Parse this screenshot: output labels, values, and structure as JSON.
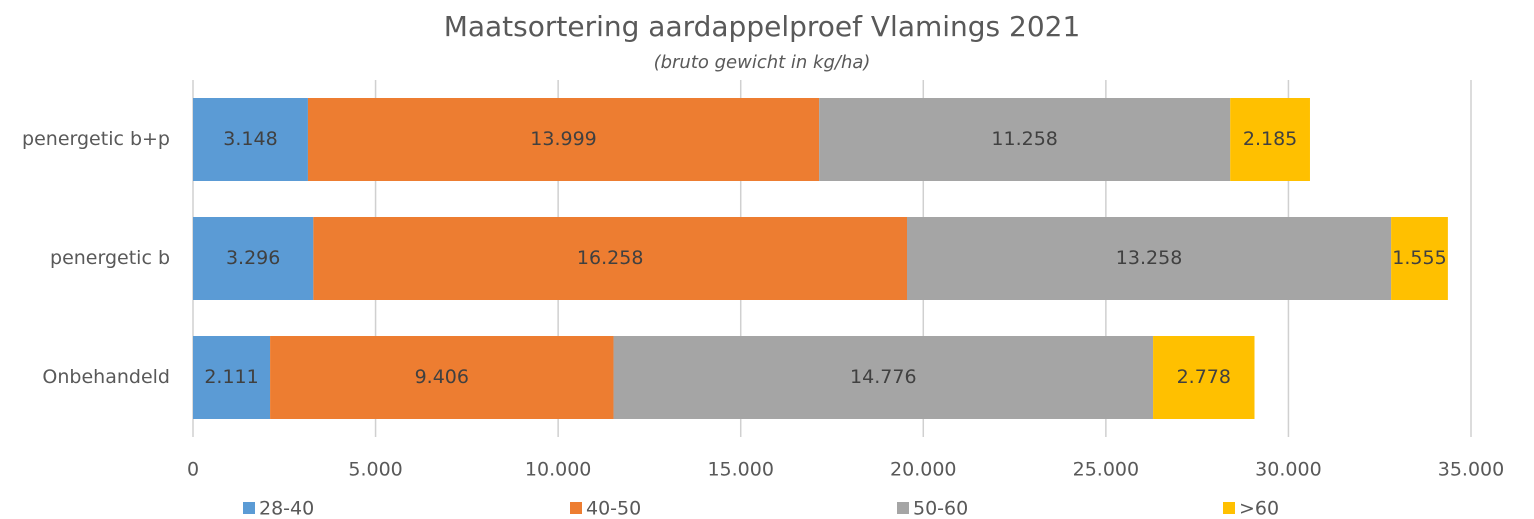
{
  "chart_data": {
    "type": "stacked-bar-horizontal",
    "title": "Maatsortering aardappelproef Vlamings 2021",
    "subtitle": "(bruto gewicht in kg/ha)",
    "categories": [
      "penergetic b+p",
      "penergetic b",
      "Onbehandeld"
    ],
    "series": [
      {
        "name": "28-40",
        "color": "#5b9bd5",
        "values": [
          3148,
          3296,
          2111
        ],
        "value_labels": [
          "3.148",
          "3.296",
          "2.111"
        ]
      },
      {
        "name": "40-50",
        "color": "#ed7d31",
        "values": [
          13999,
          16258,
          9406
        ],
        "value_labels": [
          "13.999",
          "16.258",
          "9.406"
        ]
      },
      {
        "name": "50-60",
        "color": "#a5a5a5",
        "values": [
          11258,
          13258,
          14776
        ],
        "value_labels": [
          "11.258",
          "13.258",
          "14.776"
        ]
      },
      {
        "name": ">60",
        "color": "#ffc000",
        "values": [
          2185,
          1555,
          2778
        ],
        "value_labels": [
          "2.185",
          "1.555",
          "2.778"
        ]
      }
    ],
    "xlim": [
      0,
      35000
    ],
    "xticks": [
      0,
      {
        "value": 5000,
        "label": "5.000"
      },
      {
        "value": 10000,
        "label": "10.000"
      },
      {
        "value": 15000,
        "label": "15.000"
      },
      {
        "value": 20000,
        "label": "20.000"
      },
      {
        "value": 25000,
        "label": "25.000"
      },
      {
        "value": 30000,
        "label": "30.000"
      },
      {
        "value": 35000,
        "label": "35.000"
      }
    ],
    "grid": true,
    "legend": "bottom"
  }
}
